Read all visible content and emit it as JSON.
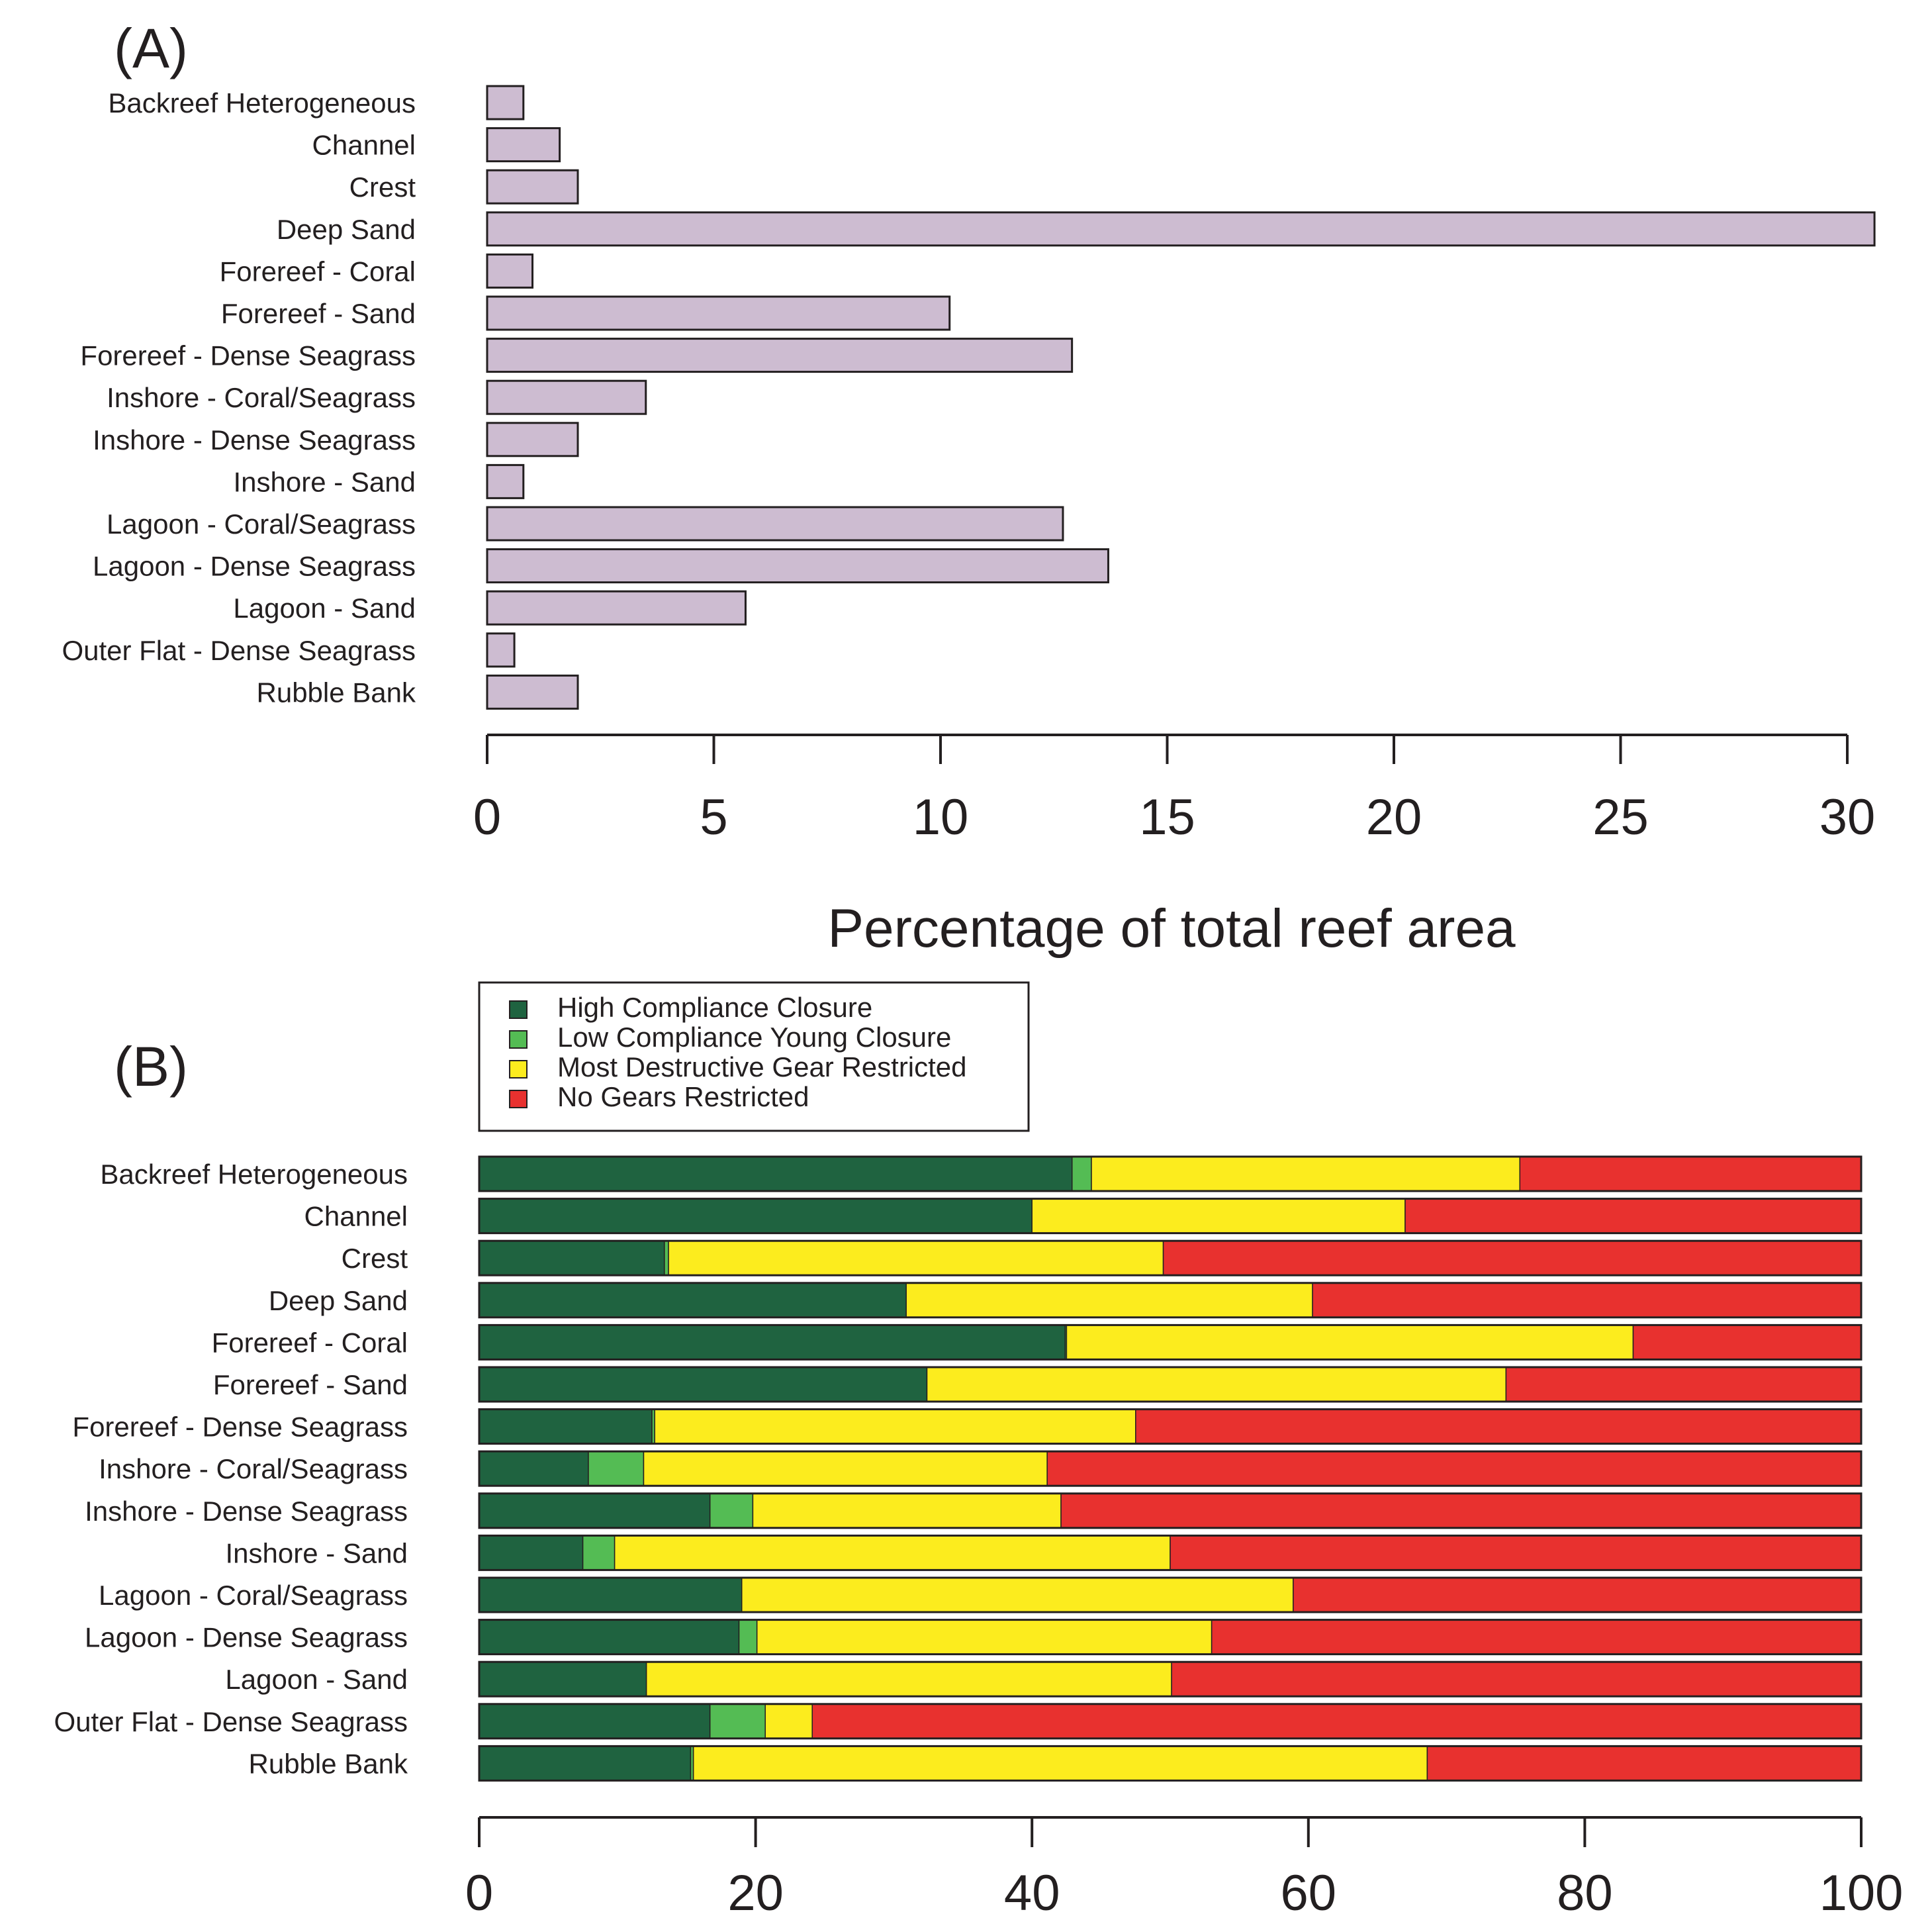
{
  "chart_data": [
    {
      "type": "bar",
      "orientation": "horizontal",
      "panel_label": "(A)",
      "categories": [
        "Backreef Heterogeneous",
        "Channel",
        "Crest",
        "Deep Sand",
        "Forereef - Coral",
        "Forereef - Sand",
        "Forereef - Dense Seagrass",
        "Inshore - Coral/Seagrass",
        "Inshore - Dense Seagrass",
        "Inshore - Sand",
        "Lagoon - Coral/Seagrass",
        "Lagoon - Dense Seagrass",
        "Lagoon - Sand",
        "Outer Flat - Dense Seagrass",
        "Rubble Bank"
      ],
      "values": [
        0.8,
        1.6,
        2.0,
        30.6,
        1.0,
        10.2,
        12.9,
        3.5,
        2.0,
        0.8,
        12.7,
        13.7,
        5.7,
        0.6,
        2.0
      ],
      "xlim": [
        0,
        30
      ],
      "ticks": [
        0,
        5,
        10,
        15,
        20,
        25,
        30
      ],
      "tick_labels": [
        "0",
        "5",
        "10",
        "15",
        "20",
        "25",
        "30"
      ],
      "xlabel": "Percentage of total reef area",
      "bar_color": "#cdbcd1"
    },
    {
      "type": "bar",
      "orientation": "horizontal",
      "stacked": true,
      "panel_label": "(B)",
      "categories": [
        "Backreef Heterogeneous",
        "Channel",
        "Crest",
        "Deep Sand",
        "Forereef - Coral",
        "Forereef - Sand",
        "Forereef - Dense Seagrass",
        "Inshore - Coral/Seagrass",
        "Inshore - Dense Seagrass",
        "Inshore - Sand",
        "Lagoon - Coral/Seagrass",
        "Lagoon - Dense Seagrass",
        "Lagoon - Sand",
        "Outer Flat - Dense Seagrass",
        "Rubble Bank"
      ],
      "series": [
        {
          "name": "High Compliance Closure",
          "color": "#1f6340",
          "values": [
            42.9,
            40.0,
            13.4,
            30.9,
            42.4,
            32.4,
            12.5,
            7.9,
            16.7,
            7.5,
            19.0,
            18.8,
            12.1,
            16.7,
            15.3
          ]
        },
        {
          "name": "Low Compliance Young Closure",
          "color": "#54bc54",
          "values": [
            1.4,
            0.0,
            0.3,
            0.0,
            0.1,
            0.0,
            0.2,
            4.0,
            3.1,
            2.3,
            0.0,
            1.3,
            0.0,
            4.0,
            0.2
          ]
        },
        {
          "name": "Most Destructive Gear Restricted",
          "color": "#fcec1e",
          "values": [
            31.0,
            27.0,
            35.8,
            29.4,
            41.0,
            41.9,
            34.8,
            29.2,
            22.3,
            40.2,
            39.9,
            32.9,
            38.0,
            3.4,
            53.1
          ]
        },
        {
          "name": "No Gears Restricted",
          "color": "#e8312f",
          "values": [
            24.7,
            33.0,
            50.5,
            39.7,
            16.5,
            25.7,
            52.5,
            58.9,
            57.9,
            50.0,
            41.1,
            47.0,
            49.9,
            75.9,
            31.4
          ]
        }
      ],
      "xlim": [
        0,
        100
      ],
      "ticks": [
        0,
        20,
        40,
        60,
        80,
        100
      ],
      "tick_labels": [
        "0",
        "20",
        "40",
        "60",
        "80",
        "100"
      ],
      "legend_position": "top"
    }
  ]
}
